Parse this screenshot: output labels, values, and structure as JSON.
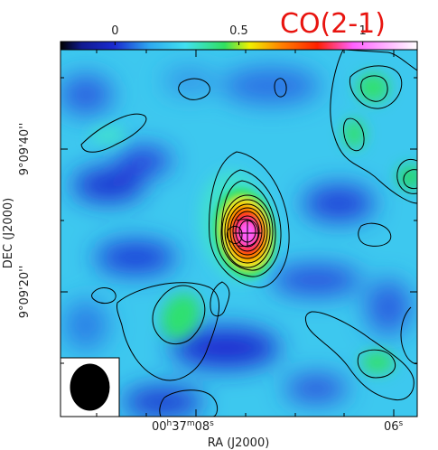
{
  "chart_data": {
    "type": "heatmap",
    "line_label": "CO(2-1)",
    "line_label_color": "#e8140f",
    "colorbar": {
      "tick_labels": [
        "0",
        "0.5",
        "1"
      ],
      "tick_values": [
        0,
        0.5,
        1
      ],
      "range": [
        -0.22,
        1.22
      ],
      "colormap": [
        "#000000",
        "#1a2ad0",
        "#2ea9f0",
        "#40e0f0",
        "#30e060",
        "#f0f000",
        "#ff8000",
        "#ff2000",
        "#ff60ff",
        "#ffffff"
      ]
    },
    "xlabel": "RA (J2000)",
    "ylabel": "DEC (J2000)",
    "x_ticks": [
      {
        "main": "00",
        "u1": "h",
        "n2": "37",
        "u2": "m",
        "n3": "08",
        "u3": "s"
      },
      {
        "main": "06",
        "u1": "s"
      }
    ],
    "y_ticks": [
      "9°09'40''",
      "9°09'20''"
    ],
    "source": {
      "peak_value": 1.0,
      "contour_levels": 10
    },
    "beam": {
      "shape": "ellipse",
      "fill": "#000000"
    },
    "grid": false,
    "contours": true
  }
}
